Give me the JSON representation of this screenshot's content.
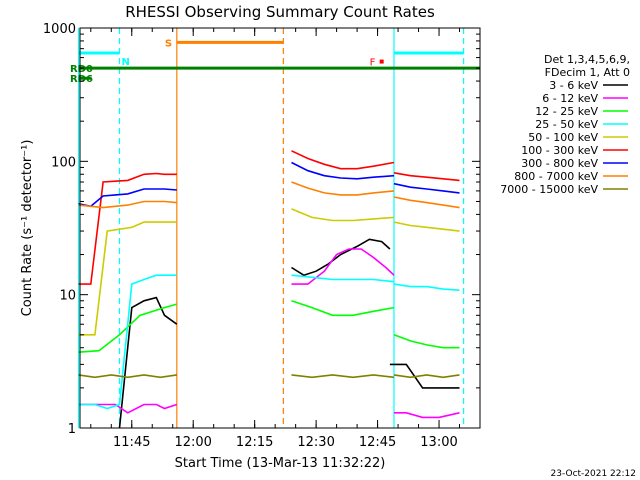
{
  "chart_data": {
    "type": "line",
    "title": "RHESSI Observing Summary Count Rates",
    "xlabel": "Start Time (13-Mar-13 11:32:22)",
    "ylabel": "Count Rate (s⁻¹ detector⁻¹)",
    "yscale": "log",
    "ylim": [
      1,
      1000
    ],
    "xlim": [
      "11:32:22",
      "13:10:00"
    ],
    "x_ticks": [
      "11:45",
      "12:00",
      "12:15",
      "12:30",
      "12:45",
      "13:00"
    ],
    "y_ticks": [
      "1",
      "10",
      "100",
      "1000"
    ],
    "legend_position": "right",
    "legend_header": [
      "Det 1,3,4,5,6,9,",
      "FDecim 1, Att 0"
    ],
    "timestamp": "23-Oct-2021 22:12",
    "series": [
      {
        "name": "3 - 6 keV",
        "color": "#000000",
        "segments": [
          {
            "x": [
              "11:42",
              "11:45",
              "11:48",
              "11:51",
              "11:53",
              "11:56"
            ],
            "y": [
              1.0,
              8.0,
              9.0,
              9.5,
              7.0,
              6.0
            ]
          },
          {
            "x": [
              "12:24",
              "12:27",
              "12:30",
              "12:33",
              "12:36",
              "12:40",
              "12:43",
              "12:46",
              "12:48"
            ],
            "y": [
              16.0,
              14.0,
              15.0,
              17.0,
              20.0,
              23.0,
              26.0,
              25.0,
              22.0
            ]
          },
          {
            "x": [
              "12:48",
              "12:52",
              "12:56",
              "13:00",
              "13:05"
            ],
            "y": [
              3.0,
              3.0,
              2.0,
              2.0,
              2.0
            ]
          }
        ]
      },
      {
        "name": "6 - 12 keV",
        "color": "#ff00ff",
        "segments": [
          {
            "x": [
              "11:32",
              "11:35",
              "11:38",
              "11:41",
              "11:44",
              "11:48",
              "11:51",
              "11:53",
              "11:56"
            ],
            "y": [
              1.5,
              1.5,
              1.5,
              1.5,
              1.3,
              1.5,
              1.5,
              1.4,
              1.5
            ]
          },
          {
            "x": [
              "12:24",
              "12:28",
              "12:32",
              "12:35",
              "12:38",
              "12:41",
              "12:44",
              "12:47",
              "12:49"
            ],
            "y": [
              12.0,
              12.0,
              15.0,
              20.0,
              22.0,
              22.0,
              19.0,
              16.0,
              14.0
            ]
          },
          {
            "x": [
              "12:49",
              "12:52",
              "12:56",
              "13:00",
              "13:05"
            ],
            "y": [
              1.3,
              1.3,
              1.2,
              1.2,
              1.3
            ]
          }
        ]
      },
      {
        "name": "12 - 25 keV",
        "color": "#00ff00",
        "segments": [
          {
            "x": [
              "11:32",
              "11:37",
              "11:42",
              "11:47",
              "11:53",
              "11:56"
            ],
            "y": [
              3.7,
              3.8,
              5.0,
              7.0,
              8.0,
              8.5
            ]
          },
          {
            "x": [
              "12:24",
              "12:29",
              "12:34",
              "12:39",
              "12:44",
              "12:49"
            ],
            "y": [
              9.0,
              8.0,
              7.0,
              7.0,
              7.5,
              8.0
            ]
          },
          {
            "x": [
              "12:49",
              "12:53",
              "12:57",
              "13:01",
              "13:05"
            ],
            "y": [
              5.0,
              4.5,
              4.2,
              4.0,
              4.0
            ]
          }
        ]
      },
      {
        "name": "25 - 50 keV",
        "color": "#00ffff",
        "segments": [
          {
            "x": [
              "11:32",
              "11:36",
              "11:39",
              "11:42",
              "11:45",
              "11:48",
              "11:51",
              "11:53",
              "11:56"
            ],
            "y": [
              1.5,
              1.5,
              1.4,
              1.5,
              12.0,
              13.0,
              14.0,
              14.0,
              14.0
            ]
          },
          {
            "x": [
              "12:24",
              "12:29",
              "12:34",
              "12:39",
              "12:44",
              "12:49"
            ],
            "y": [
              14.0,
              13.5,
              13.0,
              13.0,
              13.0,
              12.5
            ]
          },
          {
            "x": [
              "12:49",
              "12:53",
              "12:57",
              "13:01",
              "13:05"
            ],
            "y": [
              12.0,
              11.5,
              11.5,
              11.0,
              10.8
            ]
          }
        ]
      },
      {
        "name": "50 - 100 keV",
        "color": "#cccc00",
        "segments": [
          {
            "x": [
              "11:32",
              "11:36",
              "11:39",
              "11:42",
              "11:45",
              "11:48",
              "11:51",
              "11:53",
              "11:56"
            ],
            "y": [
              5.0,
              5.0,
              30.0,
              31.0,
              32.0,
              35.0,
              35.0,
              35.0,
              35.0
            ]
          },
          {
            "x": [
              "12:24",
              "12:29",
              "12:34",
              "12:39",
              "12:44",
              "12:49"
            ],
            "y": [
              44.0,
              38.0,
              36.0,
              36.0,
              37.0,
              38.0
            ]
          },
          {
            "x": [
              "12:49",
              "12:53",
              "12:57",
              "13:01",
              "13:05"
            ],
            "y": [
              35.0,
              33.0,
              32.0,
              31.0,
              30.0
            ]
          }
        ]
      },
      {
        "name": "100 - 300 keV",
        "color": "#ff0000",
        "segments": [
          {
            "x": [
              "11:32",
              "11:35",
              "11:38",
              "11:41",
              "11:44",
              "11:48",
              "11:51",
              "11:53",
              "11:56"
            ],
            "y": [
              12.0,
              12.0,
              70.0,
              71.0,
              72.0,
              80.0,
              81.0,
              80.0,
              80.0
            ]
          },
          {
            "x": [
              "12:24",
              "12:28",
              "12:32",
              "12:36",
              "12:40",
              "12:44",
              "12:49"
            ],
            "y": [
              120.0,
              105.0,
              95.0,
              88.0,
              88.0,
              92.0,
              98.0
            ]
          },
          {
            "x": [
              "12:49",
              "12:53",
              "12:57",
              "13:01",
              "13:05"
            ],
            "y": [
              82.0,
              78.0,
              76.0,
              74.0,
              72.0
            ]
          }
        ]
      },
      {
        "name": "300 - 800 keV",
        "color": "#0000ff",
        "segments": [
          {
            "x": [
              "11:32",
              "11:35",
              "11:38",
              "11:41",
              "11:44",
              "11:48",
              "11:51",
              "11:53",
              "11:56"
            ],
            "y": [
              48.0,
              46.0,
              55.0,
              56.0,
              57.0,
              62.0,
              62.0,
              62.0,
              61.0
            ]
          },
          {
            "x": [
              "12:24",
              "12:28",
              "12:32",
              "12:36",
              "12:40",
              "12:44",
              "12:49"
            ],
            "y": [
              98.0,
              85.0,
              78.0,
              75.0,
              74.0,
              76.0,
              78.0
            ]
          },
          {
            "x": [
              "12:49",
              "12:53",
              "12:57",
              "13:01",
              "13:05"
            ],
            "y": [
              68.0,
              64.0,
              62.0,
              60.0,
              58.0
            ]
          }
        ]
      },
      {
        "name": "800 - 7000 keV",
        "color": "#ff8000",
        "segments": [
          {
            "x": [
              "11:32",
              "11:35",
              "11:38",
              "11:41",
              "11:44",
              "11:48",
              "11:51",
              "11:53",
              "11:56"
            ],
            "y": [
              47.0,
              46.0,
              45.0,
              46.0,
              47.0,
              50.0,
              50.0,
              50.0,
              49.0
            ]
          },
          {
            "x": [
              "12:24",
              "12:28",
              "12:32",
              "12:36",
              "12:40",
              "12:44",
              "12:49"
            ],
            "y": [
              70.0,
              63.0,
              58.0,
              56.0,
              56.0,
              58.0,
              60.0
            ]
          },
          {
            "x": [
              "12:49",
              "12:53",
              "12:57",
              "13:01",
              "13:05"
            ],
            "y": [
              54.0,
              51.0,
              49.0,
              47.0,
              45.0
            ]
          }
        ]
      },
      {
        "name": "7000 - 15000 keV",
        "color": "#808000",
        "segments": [
          {
            "x": [
              "11:32",
              "11:36",
              "11:40",
              "11:44",
              "11:48",
              "11:52",
              "11:56"
            ],
            "y": [
              2.5,
              2.4,
              2.5,
              2.4,
              2.5,
              2.4,
              2.5
            ]
          },
          {
            "x": [
              "12:24",
              "12:29",
              "12:34",
              "12:39",
              "12:44",
              "12:49"
            ],
            "y": [
              2.5,
              2.4,
              2.5,
              2.4,
              2.5,
              2.4
            ]
          },
          {
            "x": [
              "12:49",
              "12:53",
              "12:57",
              "13:01",
              "13:05"
            ],
            "y": [
              2.5,
              2.4,
              2.5,
              2.4,
              2.5
            ]
          }
        ]
      }
    ],
    "annotations": {
      "vlines": [
        {
          "time": "11:32",
          "color": "#00ffff",
          "style": "solid"
        },
        {
          "time": "11:42",
          "color": "#00ffff",
          "style": "dashed"
        },
        {
          "time": "11:56",
          "color": "#ff8000",
          "style": "solid"
        },
        {
          "time": "12:22",
          "color": "#ff8000",
          "style": "dashed"
        },
        {
          "time": "12:49",
          "color": "#00ffff",
          "style": "solid"
        },
        {
          "time": "13:06",
          "color": "#00ffff",
          "style": "dashed"
        }
      ],
      "bars": [
        {
          "label": "RD0",
          "color": "#008000",
          "start": "11:32",
          "end": "13:10",
          "y": 500
        },
        {
          "label": "RD6",
          "color": "#008000",
          "start": "11:32",
          "end": "11:35",
          "y": 420
        },
        {
          "label": "N",
          "color": "#00ffff",
          "start": "11:32",
          "end": "11:42",
          "y": 650
        },
        {
          "label": "S",
          "color": "#ff8000",
          "start": "11:56",
          "end": "12:22",
          "y": 780
        },
        {
          "label": "",
          "color": "#00ffff",
          "start": "12:49",
          "end": "13:06",
          "y": 650
        }
      ],
      "flare_marker": {
        "label": "F",
        "color": "#ff0000",
        "time": "12:46",
        "y": 560
      }
    }
  }
}
